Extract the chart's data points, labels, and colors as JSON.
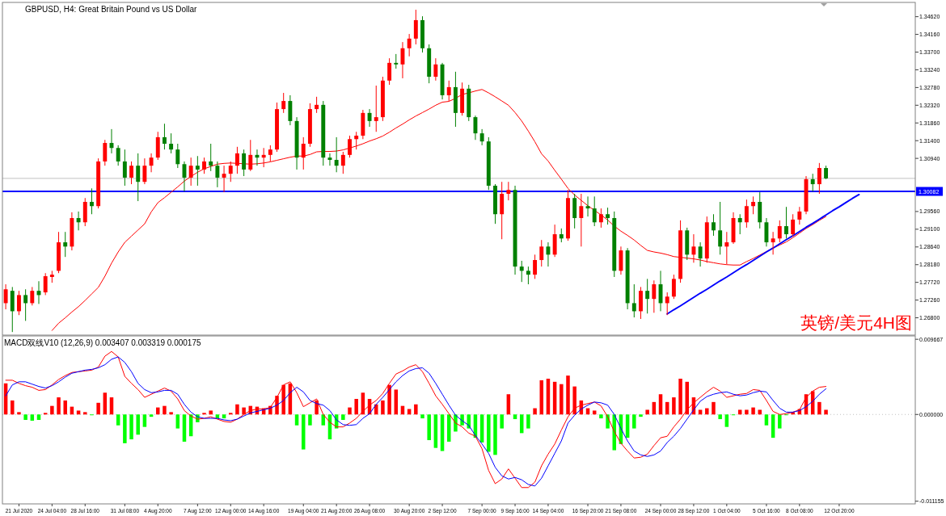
{
  "chart_data": [
    {
      "type": "candlestick",
      "title": "GBPUSD, H4: Great Britain Pound vs US Dollar",
      "categories": [
        null,
        null,
        null,
        null,
        null,
        null,
        null,
        null,
        null,
        null,
        null,
        null,
        null,
        null,
        null,
        null,
        null,
        null,
        null,
        null,
        null,
        null,
        null,
        null,
        null,
        null,
        null,
        null,
        null,
        null,
        null,
        null,
        null,
        null,
        null,
        null,
        null,
        null,
        null,
        null,
        null,
        null,
        null,
        null,
        null,
        null,
        null,
        null,
        null,
        null,
        null,
        null,
        null,
        null,
        null,
        null,
        null,
        null,
        null,
        null,
        null,
        null,
        null,
        null,
        null,
        null,
        null,
        null,
        null,
        null,
        null,
        null,
        null,
        null,
        null,
        null,
        null,
        null,
        null,
        null,
        null,
        null,
        null,
        null,
        null,
        null,
        null,
        null,
        null,
        null,
        null,
        null,
        null,
        null,
        null,
        null,
        null,
        null,
        null,
        null,
        null,
        null,
        null,
        null,
        null,
        null,
        null,
        null,
        null,
        null,
        null,
        null,
        null,
        null,
        null,
        null,
        null,
        null,
        null,
        null,
        null,
        null,
        null,
        null,
        null,
        null,
        null,
        null,
        null,
        null,
        null,
        null,
        null,
        null,
        null,
        null,
        null,
        null
      ],
      "ohlc": [
        [
          1.2718,
          1.2767,
          1.2702,
          1.2754
        ],
        [
          1.275,
          1.276,
          1.2643,
          1.2697
        ],
        [
          1.2697,
          1.275,
          1.2687,
          1.2739
        ],
        [
          1.2739,
          1.2754,
          1.2672,
          1.2718
        ],
        [
          1.2718,
          1.276,
          1.2712,
          1.275
        ],
        [
          1.275,
          1.2775,
          1.2716,
          1.2739
        ],
        [
          1.2746,
          1.2796,
          1.2739,
          1.2788
        ],
        [
          1.2786,
          1.2802,
          1.2771,
          1.2792
        ],
        [
          1.2802,
          1.2903,
          1.2796,
          1.2876
        ],
        [
          1.2876,
          1.2903,
          1.2838,
          1.2865
        ],
        [
          1.2865,
          1.2954,
          1.2855,
          1.2939
        ],
        [
          1.2939,
          1.2956,
          1.2907,
          1.2928
        ],
        [
          1.2928,
          1.2991,
          1.2918,
          1.2981
        ],
        [
          1.2981,
          1.3016,
          1.2949,
          1.297
        ],
        [
          1.297,
          1.3094,
          1.2964,
          1.3086
        ],
        [
          1.3086,
          1.3142,
          1.3075,
          1.3134
        ],
        [
          1.3134,
          1.317,
          1.3107,
          1.3121
        ],
        [
          1.3121,
          1.3128,
          1.3075,
          1.3086
        ],
        [
          1.3086,
          1.3117,
          1.3023,
          1.3044
        ],
        [
          1.3044,
          1.3086,
          1.3027,
          1.3075
        ],
        [
          1.3075,
          1.3107,
          1.2983,
          1.3033
        ],
        [
          1.3033,
          1.3094,
          1.3027,
          1.3075
        ],
        [
          1.3075,
          1.3107,
          1.3058,
          1.3096
        ],
        [
          1.3096,
          1.3163,
          1.309,
          1.3149
        ],
        [
          1.3149,
          1.3184,
          1.3117,
          1.3132
        ],
        [
          1.3132,
          1.3159,
          1.3107,
          1.3117
        ],
        [
          1.3117,
          1.3132,
          1.3069,
          1.3079
        ],
        [
          1.3079,
          1.3086,
          1.3008,
          1.3044
        ],
        [
          1.3044,
          1.3096,
          1.3023,
          1.3075
        ],
        [
          1.3075,
          1.31,
          1.3023,
          1.3065
        ],
        [
          1.3065,
          1.3096,
          1.3054,
          1.3086
        ],
        [
          1.3086,
          1.3132,
          1.3061,
          1.3075
        ],
        [
          1.3075,
          1.3086,
          1.3019,
          1.3044
        ],
        [
          1.3044,
          1.3075,
          1.3006,
          1.3054
        ],
        [
          1.3054,
          1.3086,
          1.3033,
          1.3075
        ],
        [
          1.3075,
          1.3124,
          1.3054,
          1.3107
        ],
        [
          1.3107,
          1.3117,
          1.3048,
          1.3065
        ],
        [
          1.3065,
          1.3142,
          1.3061,
          1.3103
        ],
        [
          1.3103,
          1.3117,
          1.3075,
          1.3096
        ],
        [
          1.3096,
          1.3121,
          1.3071,
          1.3103
        ],
        [
          1.3103,
          1.3128,
          1.3086,
          1.3117
        ],
        [
          1.3117,
          1.3239,
          1.3111,
          1.3222
        ],
        [
          1.3222,
          1.3264,
          1.3212,
          1.3243
        ],
        [
          1.3243,
          1.3258,
          1.318,
          1.3191
        ],
        [
          1.3191,
          1.3201,
          1.3065,
          1.3096
        ],
        [
          1.3096,
          1.3149,
          1.3065,
          1.3132
        ],
        [
          1.3132,
          1.3237,
          1.3124,
          1.3222
        ],
        [
          1.3222,
          1.3254,
          1.3212,
          1.3233
        ],
        [
          1.3233,
          1.3243,
          1.3075,
          1.3096
        ],
        [
          1.3096,
          1.3107,
          1.3075,
          1.309
        ],
        [
          1.309,
          1.3149,
          1.3058,
          1.3075
        ],
        [
          1.3075,
          1.3111,
          1.3054,
          1.3103
        ],
        [
          1.3103,
          1.3153,
          1.3096,
          1.3144
        ],
        [
          1.3144,
          1.3163,
          1.3117,
          1.3153
        ],
        [
          1.3153,
          1.322,
          1.3144,
          1.3212
        ],
        [
          1.3212,
          1.3222,
          1.3176,
          1.3191
        ],
        [
          1.3191,
          1.3283,
          1.3163,
          1.3201
        ],
        [
          1.3201,
          1.3306,
          1.3191,
          1.3296
        ],
        [
          1.3296,
          1.3354,
          1.3285,
          1.3342
        ],
        [
          1.3342,
          1.3365,
          1.3327,
          1.3338
        ],
        [
          1.3338,
          1.3396,
          1.3302,
          1.338
        ],
        [
          1.338,
          1.3417,
          1.3359,
          1.3405
        ],
        [
          1.3405,
          1.348,
          1.339,
          1.3453
        ],
        [
          1.3453,
          1.3463,
          1.3369,
          1.338
        ],
        [
          1.338,
          1.339,
          1.3289,
          1.3306
        ],
        [
          1.3306,
          1.3354,
          1.3296,
          1.3338
        ],
        [
          1.3338,
          1.3342,
          1.3247,
          1.3258
        ],
        [
          1.3258,
          1.3296,
          1.3243,
          1.3279
        ],
        [
          1.3279,
          1.3319,
          1.3176,
          1.3212
        ],
        [
          1.3212,
          1.3291,
          1.3205,
          1.3275
        ],
        [
          1.3275,
          1.3285,
          1.3191,
          1.3201
        ],
        [
          1.3201,
          1.3205,
          1.3142,
          1.3159
        ],
        [
          1.3159,
          1.317,
          1.3128,
          1.3138
        ],
        [
          1.3138,
          1.3149,
          1.3012,
          1.3023
        ],
        [
          1.3023,
          1.3027,
          1.2924,
          1.2949
        ],
        [
          1.2949,
          1.3033,
          1.2884,
          1.3002
        ],
        [
          1.3002,
          1.3033,
          1.2985,
          1.3012
        ],
        [
          1.3012,
          1.3023,
          1.2792,
          1.2813
        ],
        [
          1.2813,
          1.2828,
          1.2773,
          1.2802
        ],
        [
          1.2802,
          1.2813,
          1.2767,
          1.2792
        ],
        [
          1.2792,
          1.2844,
          1.2781,
          1.283
        ],
        [
          1.283,
          1.2882,
          1.2813,
          1.2865
        ],
        [
          1.2865,
          1.2876,
          1.2813,
          1.2844
        ],
        [
          1.2844,
          1.2922,
          1.2838,
          1.2897
        ],
        [
          1.2897,
          1.2912,
          1.2876,
          1.2886
        ],
        [
          1.2886,
          1.3012,
          1.288,
          1.2991
        ],
        [
          1.2991,
          1.3002,
          1.2912,
          1.2939
        ],
        [
          1.2939,
          1.3002,
          1.2865,
          1.297
        ],
        [
          1.297,
          1.2995,
          1.2943,
          1.2964
        ],
        [
          1.2964,
          1.2995,
          1.2918,
          1.2928
        ],
        [
          1.2928,
          1.2964,
          1.2914,
          1.2949
        ],
        [
          1.2949,
          1.2966,
          1.2922,
          1.2939
        ],
        [
          1.2939,
          1.2956,
          1.2786,
          1.2802
        ],
        [
          1.2802,
          1.2865,
          1.2792,
          1.2855
        ],
        [
          1.2855,
          1.2861,
          1.2702,
          1.2718
        ],
        [
          1.2718,
          1.2767,
          1.2681,
          1.2697
        ],
        [
          1.2697,
          1.276,
          1.2677,
          1.275
        ],
        [
          1.275,
          1.2781,
          1.2691,
          1.2729
        ],
        [
          1.2729,
          1.2777,
          1.2693,
          1.2767
        ],
        [
          1.2767,
          1.2802,
          1.2697,
          1.2718
        ],
        [
          1.2718,
          1.2746,
          1.2687,
          1.2735
        ],
        [
          1.2735,
          1.2792,
          1.2729,
          1.2781
        ],
        [
          1.2781,
          1.2933,
          1.2771,
          1.2907
        ],
        [
          1.2907,
          1.2914,
          1.283,
          1.2844
        ],
        [
          1.2844,
          1.2897,
          1.2823,
          1.2865
        ],
        [
          1.2865,
          1.2876,
          1.2813,
          1.2834
        ],
        [
          1.2834,
          1.2943,
          1.2823,
          1.2928
        ],
        [
          1.2928,
          1.2949,
          1.2893,
          1.2907
        ],
        [
          1.2907,
          1.2981,
          1.2844,
          1.2865
        ],
        [
          1.2865,
          1.2903,
          1.2819,
          1.2876
        ],
        [
          1.2876,
          1.2954,
          1.2872,
          1.2939
        ],
        [
          1.2939,
          1.2949,
          1.2897,
          1.2928
        ],
        [
          1.2928,
          1.2987,
          1.2914,
          1.297
        ],
        [
          1.297,
          1.2995,
          1.2949,
          1.2981
        ],
        [
          1.2981,
          1.3006,
          1.2912,
          1.2928
        ],
        [
          1.2928,
          1.2939,
          1.2865,
          1.2876
        ],
        [
          1.2876,
          1.2903,
          1.2844,
          1.2886
        ],
        [
          1.2886,
          1.2933,
          1.2876,
          1.2918
        ],
        [
          1.2918,
          1.2968,
          1.2886,
          1.2897
        ],
        [
          1.2897,
          1.2949,
          1.2891,
          1.2935
        ],
        [
          1.2935,
          1.2968,
          1.2922,
          1.2956
        ],
        [
          1.2956,
          1.3048,
          1.2949,
          1.304
        ],
        [
          1.304,
          1.3054,
          1.3008,
          1.3027
        ],
        [
          1.3027,
          1.3082,
          1.3002,
          1.3069
        ],
        [
          1.3069,
          1.3075,
          1.304,
          1.3042
        ],
        null,
        null,
        null,
        null,
        null,
        null,
        null,
        null,
        null,
        null,
        null,
        null,
        null
      ],
      "colors": [
        "#ff0000",
        "#008000",
        "#ff0000",
        "#008000",
        "#ff0000",
        "#008000",
        "#ff0000",
        "#ff0000",
        "#ff0000",
        "#008000",
        "#ff0000",
        "#008000",
        "#ff0000",
        "#008000",
        "#ff0000",
        "#ff0000",
        "#008000",
        "#008000",
        "#008000",
        "#ff0000",
        "#008000",
        "#ff0000",
        "#ff0000",
        "#ff0000",
        "#008000",
        "#008000",
        "#008000",
        "#008000",
        "#ff0000",
        "#008000",
        "#ff0000",
        "#008000",
        "#008000",
        "#ff0000",
        "#ff0000",
        "#ff0000",
        "#008000",
        "#ff0000",
        "#008000",
        "#ff0000",
        "#ff0000",
        "#ff0000",
        "#ff0000",
        "#008000",
        "#008000",
        "#ff0000",
        "#ff0000",
        "#ff0000",
        "#008000",
        "#008000",
        "#008000",
        "#ff0000",
        "#ff0000",
        "#ff0000",
        "#ff0000",
        "#008000",
        "#ff0000",
        "#ff0000",
        "#ff0000",
        "#008000",
        "#ff0000",
        "#ff0000",
        "#ff0000",
        "#008000",
        "#008000",
        "#ff0000",
        "#008000",
        "#ff0000",
        "#008000",
        "#ff0000",
        "#008000",
        "#008000",
        "#008000",
        "#008000",
        "#008000",
        "#ff0000",
        "#ff0000",
        "#008000",
        "#008000",
        "#008000",
        "#ff0000",
        "#ff0000",
        "#008000",
        "#ff0000",
        "#008000",
        "#ff0000",
        "#008000",
        "#ff0000",
        "#008000",
        "#008000",
        "#ff0000",
        "#008000",
        "#008000",
        "#ff0000",
        "#008000",
        "#008000",
        "#ff0000",
        "#008000",
        "#ff0000",
        "#008000",
        "#ff0000",
        "#ff0000",
        "#ff0000",
        "#008000",
        "#ff0000",
        "#008000",
        "#ff0000",
        "#008000",
        "#008000",
        "#ff0000",
        "#ff0000",
        "#008000",
        "#ff0000",
        "#ff0000",
        "#008000",
        "#008000",
        "#ff0000",
        "#ff0000",
        "#008000",
        "#ff0000",
        "#ff0000",
        "#ff0000",
        "#008000",
        "#ff0000",
        "#008000",
        null,
        null,
        null,
        null,
        null,
        null,
        null,
        null,
        null,
        null,
        null,
        null,
        null
      ],
      "series": [
        {
          "type": "line",
          "color": "#ff0000",
          "values": [
            null,
            null,
            null,
            null,
            null,
            null,
            null,
            1.2647,
            1.2666,
            1.268,
            1.2695,
            1.2709,
            1.2725,
            1.2742,
            1.2759,
            1.2788,
            1.2822,
            1.2851,
            1.2876,
            1.2892,
            1.2908,
            1.2924,
            1.2955,
            1.2979,
            1.2992,
            1.3006,
            1.302,
            1.3035,
            1.3047,
            1.3058,
            1.3067,
            1.3073,
            1.3079,
            1.3081,
            1.3082,
            1.3081,
            1.308,
            1.3079,
            1.308,
            1.3082,
            1.3085,
            1.3089,
            1.3093,
            1.3097,
            1.31,
            1.31,
            1.3104,
            1.3111,
            1.3112,
            1.3112,
            1.3113,
            1.3116,
            1.3121,
            1.3126,
            1.3132,
            1.3139,
            1.3145,
            1.3152,
            1.3162,
            1.3173,
            1.3183,
            1.3194,
            1.3204,
            1.3213,
            1.3222,
            1.3232,
            1.324,
            1.3242,
            1.325,
            1.326,
            1.3264,
            1.3269,
            1.3273,
            1.3264,
            1.3254,
            1.3243,
            1.3232,
            1.3213,
            1.3191,
            1.3165,
            1.3137,
            1.3106,
            1.3087,
            1.3063,
            1.304,
            1.3016,
            1.2999,
            1.2985,
            1.2971,
            1.2959,
            1.2947,
            1.2934,
            1.2918,
            1.2905,
            1.2894,
            1.2882,
            1.2868,
            1.2855,
            1.2851,
            1.2848,
            1.2844,
            1.2839,
            1.2837,
            1.2835,
            1.2833,
            1.283,
            1.2826,
            1.2823,
            1.282,
            1.2818,
            1.2817,
            1.2817,
            1.2826,
            1.2834,
            1.2843,
            1.2852,
            1.2861,
            1.2869,
            1.2877,
            1.2888,
            1.29,
            1.2912,
            1.2922,
            1.2933,
            1.2943,
            null,
            null,
            null,
            null,
            null,
            null,
            null,
            null,
            null,
            null,
            null,
            null,
            null
          ]
        },
        {
          "type": "line",
          "color": "#0000ff",
          "values": [
            null,
            null,
            null,
            null,
            null,
            null,
            null,
            null,
            null,
            null,
            null,
            null,
            null,
            null,
            null,
            null,
            null,
            null,
            null,
            null,
            null,
            null,
            null,
            null,
            null,
            null,
            null,
            null,
            null,
            null,
            null,
            null,
            null,
            null,
            null,
            null,
            null,
            null,
            null,
            null,
            null,
            null,
            null,
            null,
            null,
            null,
            null,
            null,
            null,
            null,
            null,
            null,
            null,
            null,
            null,
            null,
            null,
            null,
            null,
            null,
            null,
            null,
            null,
            null,
            null,
            null,
            null,
            null,
            null,
            null,
            null,
            null,
            null,
            null,
            null,
            null,
            null,
            null,
            null,
            null,
            null,
            null,
            null,
            null,
            null,
            null,
            null,
            null,
            null,
            null,
            null,
            null,
            null,
            null,
            null,
            null,
            null,
            null,
            null,
            null,
            1.269,
            1.2701,
            1.2711,
            1.2722,
            1.2733,
            1.2744,
            1.2754,
            1.2765,
            1.2776,
            1.2786,
            1.2797,
            1.2808,
            1.2818,
            1.2829,
            1.284,
            1.2851,
            1.2861,
            1.2872,
            1.2883,
            1.2893,
            1.2904,
            1.2915,
            1.2925,
            1.2936,
            1.2947,
            1.2958,
            1.2968,
            1.2979,
            1.299,
            1.3,
            null,
            null,
            null,
            null,
            null,
            null,
            null,
            null
          ]
        }
      ],
      "ylim": [
        1.2635,
        1.3499
      ],
      "yticks": [
        {
          "value": 1.268,
          "label": "1.26800"
        },
        {
          "value": 1.2726,
          "label": "1.27260"
        },
        {
          "value": 1.2772,
          "label": "1.27720"
        },
        {
          "value": 1.2818,
          "label": "1.28180"
        },
        {
          "value": 1.2864,
          "label": "1.28640"
        },
        {
          "value": 1.291,
          "label": "1.29100"
        },
        {
          "value": 1.2956,
          "label": "1.29560"
        },
        {
          "value": 1.3094,
          "label": "1.30940"
        },
        {
          "value": 1.314,
          "label": "1.31400"
        },
        {
          "value": 1.3186,
          "label": "1.31860"
        },
        {
          "value": 1.3232,
          "label": "1.32320"
        },
        {
          "value": 1.3278,
          "label": "1.32780"
        },
        {
          "value": 1.3324,
          "label": "1.33240"
        },
        {
          "value": 1.337,
          "label": "1.33700"
        },
        {
          "value": 1.3416,
          "label": "1.34160"
        },
        {
          "value": 1.3462,
          "label": "1.34620"
        }
      ],
      "ref_lines": [
        {
          "axis": "y",
          "value": 1.3042,
          "color": "#c0c0c0"
        },
        {
          "axis": "y",
          "value": 1.30082,
          "label": "1.30082",
          "color": "#0000ff"
        }
      ],
      "annotations": [
        "英镑/美元4H图"
      ],
      "tick_labels": "y"
    },
    {
      "type": "bar",
      "title": "MACD双线V10 (12,26,9) 0.003407 0.003319 0.000175",
      "categories": [
        null,
        null,
        "21 Jul 2020",
        null,
        null,
        null,
        null,
        "24 Jul 04:00",
        null,
        null,
        null,
        null,
        "28 Jul 16:00",
        null,
        null,
        null,
        null,
        null,
        "31 Jul 08:00",
        null,
        null,
        null,
        null,
        "4 Aug 20:00",
        null,
        null,
        null,
        null,
        null,
        "7 Aug 12:00",
        null,
        null,
        null,
        null,
        "12 Aug 00:00",
        null,
        null,
        null,
        null,
        "14 Aug 16:00",
        null,
        null,
        null,
        null,
        null,
        "19 Aug 04:00",
        null,
        null,
        null,
        null,
        "21 Aug 20:00",
        null,
        null,
        null,
        null,
        "26 Aug 08:00",
        null,
        null,
        null,
        null,
        null,
        "30 Aug 20:00",
        null,
        null,
        null,
        null,
        "2 Sep 12:00",
        null,
        null,
        null,
        null,
        null,
        "7 Sep 00:00",
        null,
        null,
        null,
        null,
        "9 Sep 16:00",
        null,
        null,
        null,
        null,
        "14 Sep 04:00",
        null,
        null,
        null,
        null,
        null,
        "16 Sep 20:00",
        null,
        null,
        null,
        null,
        "21 Sep 08:00",
        null,
        null,
        null,
        null,
        null,
        "24 Sep 00:00",
        null,
        null,
        null,
        null,
        "28 Sep 12:00",
        null,
        null,
        null,
        null,
        "1 Oct 04:00",
        null,
        null,
        null,
        null,
        null,
        "5 Oct 16:00",
        null,
        null,
        null,
        null,
        "8 Oct 08:00",
        null,
        null,
        null,
        null,
        null,
        "12 Oct 20:00",
        null,
        null,
        null,
        null,
        null,
        null,
        null,
        null,
        null,
        null,
        null
      ],
      "series": [
        {
          "type": "bar",
          "values": [
            0.004,
            0.0018,
            0.0003,
            -0.0007,
            -0.0008,
            -0.0007,
            0.0002,
            0.0011,
            0.0022,
            0.0018,
            0.001,
            0.0005,
            0.0003,
            -0.0001,
            0.0015,
            0.0028,
            0.0022,
            -0.0014,
            -0.0037,
            -0.0032,
            -0.0026,
            -0.0016,
            -0.0003,
            0.0009,
            0.0011,
            0.0003,
            -0.0018,
            -0.0035,
            -0.0028,
            -0.001,
            0.0002,
            0.0005,
            -0.0005,
            -0.0005,
            0.0002,
            0.0013,
            0.0009,
            0.0011,
            0.001,
            0.0008,
            0.0011,
            0.0024,
            0.0038,
            0.004,
            -0.0014,
            -0.0045,
            -0.0014,
            0.0018,
            -0.0014,
            -0.0032,
            -0.0018,
            -0.0007,
            0.0009,
            0.002,
            0.0028,
            0.002,
            0.0013,
            0.0018,
            0.0038,
            0.0032,
            0.0011,
            0.0007,
            0.0013,
            -0.0005,
            -0.0033,
            -0.0043,
            -0.0047,
            -0.0035,
            -0.0022,
            -0.0014,
            -0.0018,
            -0.003,
            -0.0036,
            -0.0048,
            -0.0052,
            -0.0018,
            0.0026,
            -0.0006,
            -0.0024,
            -0.0018,
            0.0008,
            0.0044,
            0.0046,
            0.0042,
            0.0039,
            0.005,
            0.0036,
            0.0018,
            0.0008,
            0.0005,
            -0.0005,
            -0.0018,
            -0.0046,
            -0.0038,
            -0.003,
            -0.0018,
            -0.0003,
            0.0006,
            0.0016,
            0.0026,
            0.0016,
            0.0022,
            0.0046,
            0.0042,
            0.0022,
            0.0006,
            0.0008,
            0.0016,
            -0.0006,
            -0.0016,
            -0.0001,
            0.0006,
            0.0006,
            0.0009,
            0.0006,
            -0.0014,
            -0.003,
            -0.0018,
            -0.0001,
            0.0003,
            0.0007,
            0.0026,
            0.003,
            0.0016,
            0.0006,
            null,
            null,
            null,
            null,
            null,
            null,
            null,
            null,
            null,
            null,
            null,
            null,
            null
          ],
          "colors": [
            "#ff0000",
            "#ff0000",
            "#ff0000",
            "#00ff00",
            "#00ff00",
            "#00ff00",
            "#ff0000",
            "#ff0000",
            "#ff0000",
            "#ff0000",
            "#ff0000",
            "#ff0000",
            "#ff0000",
            "#00ff00",
            "#ff0000",
            "#ff0000",
            "#ff0000",
            "#00ff00",
            "#00ff00",
            "#00ff00",
            "#00ff00",
            "#00ff00",
            "#00ff00",
            "#ff0000",
            "#ff0000",
            "#ff0000",
            "#00ff00",
            "#00ff00",
            "#00ff00",
            "#00ff00",
            "#ff0000",
            "#ff0000",
            "#00ff00",
            "#00ff00",
            "#ff0000",
            "#ff0000",
            "#ff0000",
            "#ff0000",
            "#ff0000",
            "#ff0000",
            "#ff0000",
            "#ff0000",
            "#ff0000",
            "#ff0000",
            "#00ff00",
            "#00ff00",
            "#00ff00",
            "#ff0000",
            "#00ff00",
            "#00ff00",
            "#00ff00",
            "#00ff00",
            "#ff0000",
            "#ff0000",
            "#ff0000",
            "#ff0000",
            "#ff0000",
            "#ff0000",
            "#ff0000",
            "#ff0000",
            "#ff0000",
            "#ff0000",
            "#ff0000",
            "#00ff00",
            "#00ff00",
            "#00ff00",
            "#00ff00",
            "#00ff00",
            "#00ff00",
            "#00ff00",
            "#00ff00",
            "#00ff00",
            "#00ff00",
            "#00ff00",
            "#00ff00",
            "#00ff00",
            "#ff0000",
            "#00ff00",
            "#00ff00",
            "#00ff00",
            "#ff0000",
            "#ff0000",
            "#ff0000",
            "#ff0000",
            "#ff0000",
            "#ff0000",
            "#ff0000",
            "#ff0000",
            "#ff0000",
            "#ff0000",
            "#00ff00",
            "#00ff00",
            "#00ff00",
            "#00ff00",
            "#00ff00",
            "#00ff00",
            "#00ff00",
            "#ff0000",
            "#ff0000",
            "#ff0000",
            "#ff0000",
            "#ff0000",
            "#ff0000",
            "#ff0000",
            "#ff0000",
            "#ff0000",
            "#ff0000",
            "#ff0000",
            "#00ff00",
            "#00ff00",
            "#00ff00",
            "#ff0000",
            "#ff0000",
            "#ff0000",
            "#ff0000",
            "#00ff00",
            "#00ff00",
            "#00ff00",
            "#00ff00",
            "#ff0000",
            "#ff0000",
            "#ff0000",
            "#ff0000",
            "#ff0000",
            "#ff0000",
            null,
            null,
            null,
            null,
            null,
            null,
            null,
            null,
            null,
            null,
            null,
            null,
            null
          ]
        },
        {
          "type": "line",
          "color": "#ff0000",
          "values": [
            0.0044,
            0.0044,
            0.004,
            0.0037,
            0.0035,
            0.0031,
            0.0032,
            0.0038,
            0.0045,
            0.005,
            0.0054,
            0.0055,
            0.0056,
            0.0057,
            0.0061,
            0.0075,
            0.0081,
            0.0074,
            0.0049,
            0.004,
            0.0032,
            0.0022,
            0.0026,
            0.003,
            0.0034,
            0.003,
            0.002,
            0.0005,
            -0.0002,
            -0.0006,
            -0.0005,
            -0.0003,
            -0.0006,
            -0.0009,
            -0.001,
            -0.0006,
            0,
            0.0005,
            0.0007,
            0.0007,
            0.0009,
            0.0022,
            0.0038,
            0.0042,
            0.0028,
            0.001,
            0.0015,
            0.002,
            0,
            -0.001,
            -0.0016,
            -0.0016,
            -0.0011,
            -0.0005,
            0.0004,
            0.0012,
            0.0018,
            0.0027,
            0.004,
            0.0052,
            0.0056,
            0.0061,
            0.0064,
            0.0055,
            0.004,
            0.0024,
            0.0013,
            0.0001,
            -0.0011,
            -0.0016,
            -0.0024,
            -0.0028,
            -0.0044,
            -0.0072,
            -0.0089,
            -0.0083,
            -0.007,
            -0.0082,
            -0.0094,
            -0.0094,
            -0.0087,
            -0.0066,
            -0.0051,
            -0.0038,
            -0.002,
            -0.0003,
            0.0008,
            0.0012,
            0.0014,
            0.0016,
            0.0011,
            -0.0003,
            -0.0022,
            -0.0037,
            -0.0047,
            -0.0056,
            -0.0055,
            -0.0051,
            -0.004,
            -0.003,
            -0.0028,
            -0.0016,
            -0.0006,
            0.0006,
            0.0015,
            0.0022,
            0.0029,
            0.0035,
            0.003,
            0.0022,
            0.0024,
            0.0026,
            0.0027,
            0.0032,
            0.0031,
            0.0018,
            0.0004,
            0,
            0.0001,
            0.0003,
            0.0006,
            0.0022,
            0.003,
            0.0035,
            0.0036,
            null,
            null,
            null,
            null,
            null,
            null,
            null,
            null,
            null,
            null,
            null,
            null,
            null
          ]
        },
        {
          "type": "line",
          "color": "#0000ff",
          "values": [
            0.0024,
            0.0038,
            0.0042,
            0.0042,
            0.0039,
            0.0036,
            0.0034,
            0.0037,
            0.0042,
            0.0048,
            0.0053,
            0.0055,
            0.0057,
            0.0058,
            0.006,
            0.0064,
            0.0071,
            0.0074,
            0.0067,
            0.0055,
            0.004,
            0.0032,
            0.0028,
            0.0029,
            0.0031,
            0.0031,
            0.0026,
            0.0013,
            0.0003,
            -0.0003,
            -0.0005,
            -0.0005,
            -0.0005,
            -0.0007,
            -0.0008,
            -0.0006,
            -0.0002,
            0.0002,
            0.0004,
            0.0006,
            0.0008,
            0.0012,
            0.0018,
            0.0028,
            0.0035,
            0.0029,
            0.0018,
            0.0014,
            0.0012,
            0.0005,
            -0.0007,
            -0.0013,
            -0.0014,
            -0.0013,
            -0.0005,
            0.0001,
            0.0013,
            0.0022,
            0.0032,
            0.0042,
            0.005,
            0.0056,
            0.0059,
            0.006,
            0.0053,
            0.004,
            0.0026,
            0.0012,
            -0.0001,
            -0.0008,
            -0.0014,
            -0.0027,
            -0.0038,
            -0.005,
            -0.0068,
            -0.0079,
            -0.0083,
            -0.0081,
            -0.0084,
            -0.009,
            -0.0092,
            -0.0082,
            -0.0066,
            -0.005,
            -0.0034,
            -0.0011,
            -0.0001,
            0.0007,
            0.0012,
            0.0016,
            0.0015,
            0.0012,
            0,
            -0.0018,
            -0.0034,
            -0.0047,
            -0.0052,
            -0.0054,
            -0.0052,
            -0.0047,
            -0.0036,
            -0.0028,
            -0.0018,
            -0.0006,
            0.0006,
            0.0017,
            0.0023,
            0.0026,
            0.0028,
            0.0029,
            0.0026,
            0.0024,
            0.0025,
            0.0028,
            0.003,
            0.0029,
            0.0018,
            0.0008,
            0.0003,
            0.0003,
            0.0005,
            0.001,
            0.0017,
            0.0026,
            0.0033,
            null,
            null,
            null,
            null,
            null,
            null,
            null,
            null,
            null,
            null,
            null,
            null,
            null
          ]
        }
      ],
      "ylim": [
        -0.0115,
        0.0101
      ],
      "yticks": [
        {
          "value": -0.011155,
          "label": "-0.011155"
        },
        {
          "value": 0,
          "label": "0.000000"
        },
        {
          "value": 0.009667,
          "label": "0.009667"
        }
      ],
      "ref_lines": [
        {
          "axis": "y",
          "value": 0,
          "color": "#c0c0c0",
          "line_style": "dotted"
        }
      ]
    }
  ]
}
